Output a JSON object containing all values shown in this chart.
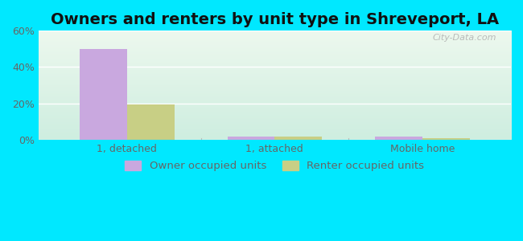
{
  "title": "Owners and renters by unit type in Shreveport, LA",
  "categories": [
    "1, detached",
    "1, attached",
    "Mobile home"
  ],
  "owner_values": [
    50.0,
    1.5,
    1.5
  ],
  "renter_values": [
    19.5,
    1.8,
    0.8
  ],
  "owner_color": "#c9a8df",
  "renter_color": "#c8cf85",
  "ylim": [
    0,
    60
  ],
  "yticks": [
    0,
    20,
    40,
    60
  ],
  "ytick_labels": [
    "0%",
    "20%",
    "40%",
    "60%"
  ],
  "bar_width": 0.32,
  "background_outer": "#00e8ff",
  "background_plot_topleft": "#e8f8e8",
  "background_plot_bottomright": "#d8f0e8",
  "legend_owner": "Owner occupied units",
  "legend_renter": "Renter occupied units",
  "watermark": "City-Data.com",
  "title_fontsize": 14,
  "tick_fontsize": 9,
  "legend_fontsize": 9.5
}
